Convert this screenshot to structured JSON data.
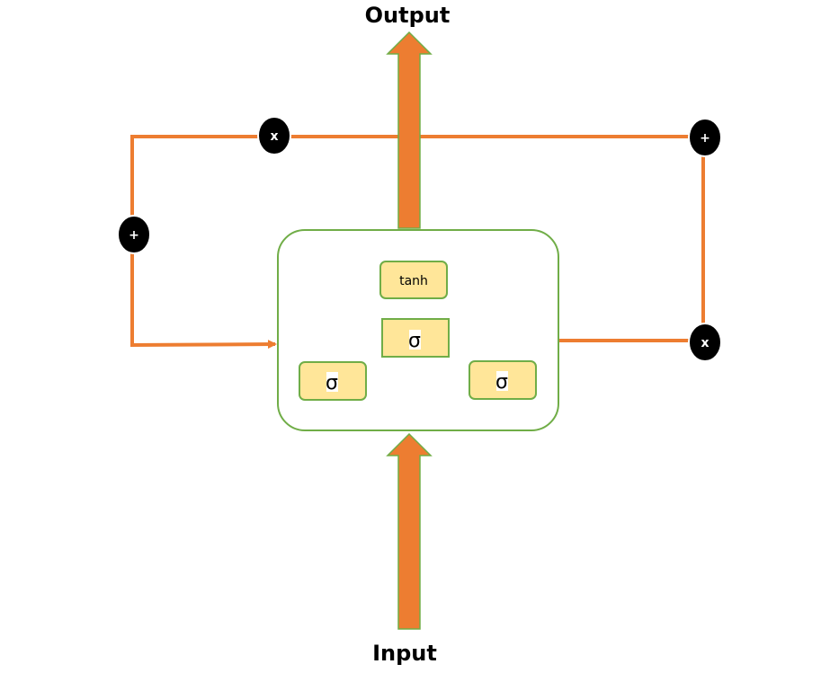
{
  "labels": {
    "output": "Output",
    "input": "Input"
  },
  "operators": {
    "top_multiply": "x",
    "top_right_add": "+",
    "left_add": "+",
    "right_multiply": "x"
  },
  "gates": {
    "tanh": "tanh",
    "sigma_center": "σ",
    "sigma_left": "σ",
    "sigma_right": "σ"
  },
  "colors": {
    "line": "#ED7D31",
    "arrow_fill": "#ED7D31",
    "arrow_outline": "#70AD47",
    "cell_border": "#70AD47",
    "gate_fill": "#FFE699",
    "operator_fill": "#000000"
  }
}
